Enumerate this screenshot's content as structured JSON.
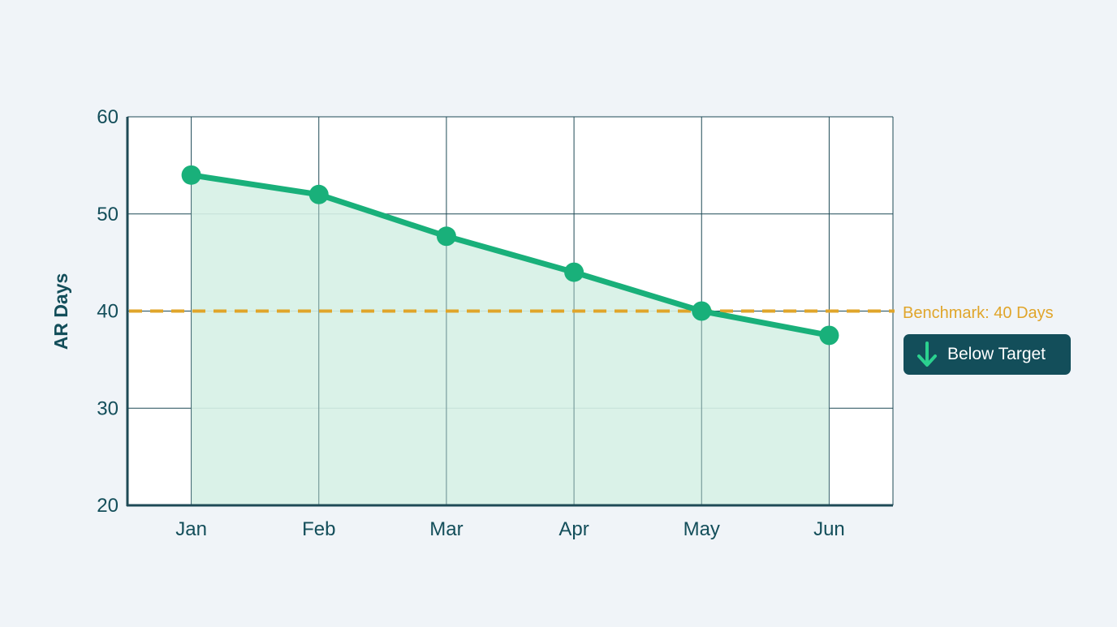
{
  "chart_data": {
    "type": "area",
    "ylabel": "AR Days",
    "categories": [
      "Jan",
      "Feb",
      "Mar",
      "Apr",
      "May",
      "Jun"
    ],
    "series": [
      {
        "values": [
          54,
          52,
          47.7,
          44,
          40,
          37.5
        ]
      }
    ],
    "ylim": [
      20,
      60
    ],
    "yticks": [
      20,
      30,
      40,
      50,
      60
    ],
    "grid": true,
    "benchmark": {
      "value": 40,
      "label": "Benchmark: 40 Days"
    },
    "badge": {
      "label": "Below Target",
      "icon": "arrow-down-icon"
    },
    "colors": {
      "line": "#19b07a",
      "fill": "#d6f1e6",
      "benchmark": "#e0a52a",
      "grid": "#1e4a56",
      "axis": "#1e4a56",
      "text": "#134e5a",
      "badge_bg": "#134e5a",
      "badge_icon": "#2bd18f"
    }
  }
}
